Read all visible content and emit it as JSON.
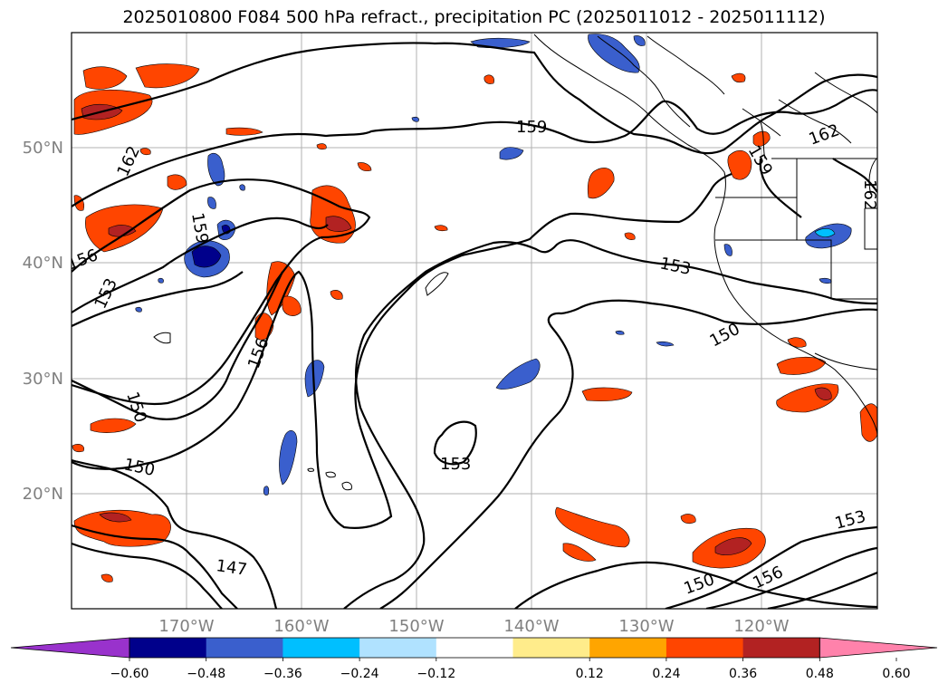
{
  "title": "2025010800 F084 500 hPa refract., precipitation PC (2025011012 - 2025011112)",
  "lat_labels": [
    "50°N",
    "40°N",
    "30°N",
    "20°N"
  ],
  "lon_labels": [
    "170°W",
    "160°W",
    "150°W",
    "140°W",
    "130°W",
    "120°W"
  ],
  "contour_labels": {
    "c159_top": "159",
    "c162_ne": "162",
    "c162_right": "162",
    "c159_ne": "159",
    "c162_west": "162",
    "c159_west": "159",
    "c156_west": "156",
    "c153_west": "153",
    "c156_mid": "156",
    "c153_center": "153",
    "c150_right": "150",
    "c150_left_a": "150",
    "c150_left_b": "150",
    "c153_south": "153",
    "c147": "147",
    "c150_se": "150",
    "c156_se": "156",
    "c153_se": "153"
  },
  "colorbar": {
    "ticks": [
      "−0.60",
      "−0.48",
      "−0.36",
      "−0.24",
      "−0.12",
      "0.12",
      "0.24",
      "0.36",
      "0.48",
      "0.60"
    ],
    "colors": [
      "#9932cc",
      "#00008b",
      "#3a5fcd",
      "#00bfff",
      "#b0e2ff",
      "#ffffff",
      "#ffec8b",
      "#ffa500",
      "#ff4500",
      "#b22222",
      "#ff82ab"
    ]
  },
  "palette": {
    "frame": "#000000",
    "grid": "#b0b0b0",
    "contour": "#000000",
    "coast": "#000000"
  }
}
